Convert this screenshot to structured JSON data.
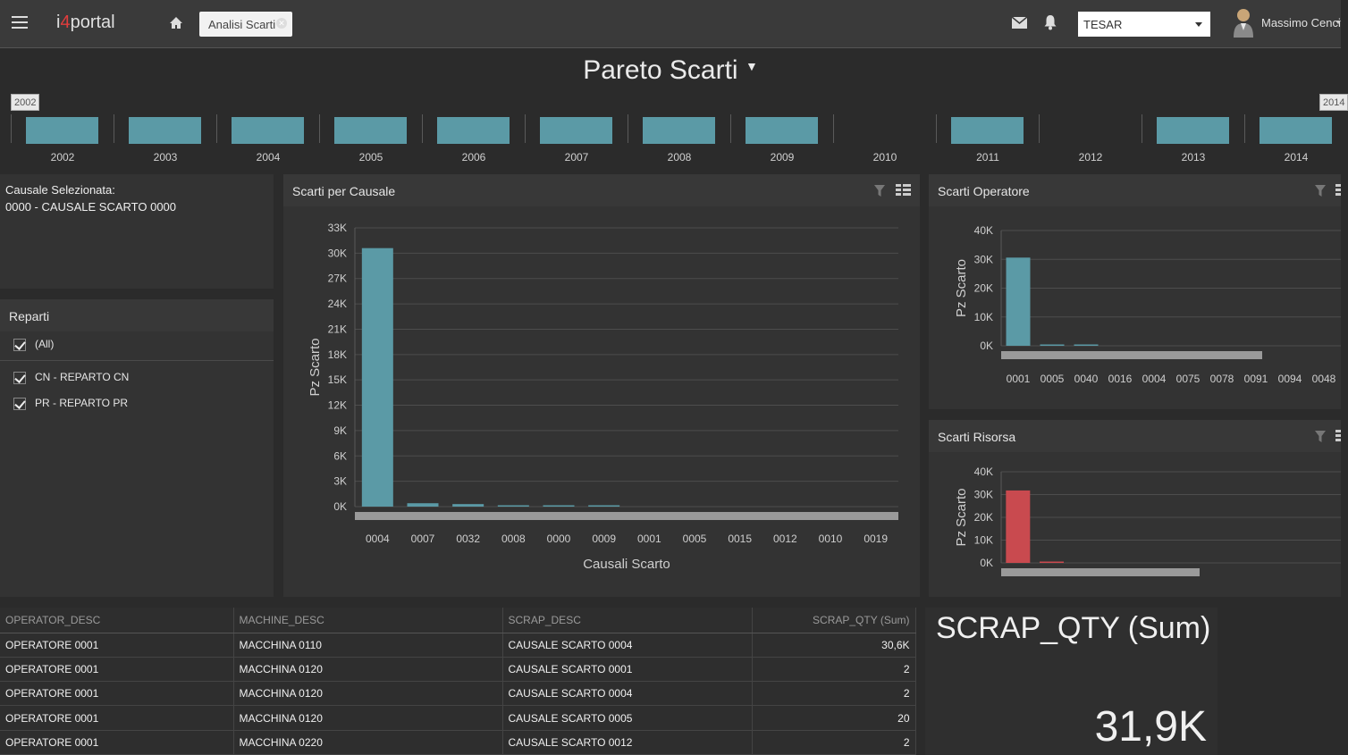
{
  "header": {
    "logo_prefix": "i",
    "logo_accent": "4",
    "logo_suffix": "portal",
    "tab_label": "Analisi Scarti",
    "company": "TESAR",
    "user_name": "Massimo Cenci"
  },
  "page_title": "Pareto Scarti",
  "timeline": {
    "years": [
      "2002",
      "2003",
      "2004",
      "2005",
      "2006",
      "2007",
      "2008",
      "2009",
      "2010",
      "2011",
      "2012",
      "2013",
      "2014"
    ],
    "has_data": [
      true,
      true,
      true,
      true,
      true,
      true,
      true,
      true,
      false,
      true,
      false,
      true,
      true
    ],
    "range_start": "2002",
    "range_end": "2014"
  },
  "selected_cause": {
    "label": "Causale Selezionata:",
    "value": "0000 - CAUSALE SCARTO 0000"
  },
  "reparti": {
    "title": "Reparti",
    "items": [
      "(All)",
      "CN - REPARTO CN",
      "PR - REPARTO PR"
    ]
  },
  "panels": {
    "main_title": "Scarti per Causale",
    "operator_title": "Scarti Operatore",
    "resource_title": "Scarti Risorsa"
  },
  "chart_data": [
    {
      "type": "bar",
      "title": "Scarti per Causale",
      "xlabel": "Causali Scarto",
      "ylabel": "Pz Scarto",
      "categories": [
        "0004",
        "0007",
        "0032",
        "0008",
        "0000",
        "0009",
        "0001",
        "0005",
        "0015",
        "0012",
        "0010",
        "0019"
      ],
      "values": [
        30600,
        400,
        300,
        100,
        80,
        60,
        0,
        0,
        0,
        0,
        0,
        0
      ],
      "yticks": [
        "0K",
        "3K",
        "6K",
        "9K",
        "12K",
        "15K",
        "18K",
        "21K",
        "24K",
        "27K",
        "30K",
        "33K"
      ],
      "ylim": [
        0,
        33000
      ],
      "color": "#5b9aa6",
      "grid": true
    },
    {
      "type": "bar",
      "title": "Scarti Operatore",
      "ylabel": "Pz Scarto",
      "categories": [
        "0001",
        "0005",
        "0040",
        "0016",
        "0004",
        "0075",
        "0078",
        "0091",
        "0094",
        "0048"
      ],
      "values": [
        30600,
        200,
        150,
        0,
        0,
        0,
        0,
        0,
        0,
        0
      ],
      "yticks": [
        "0K",
        "10K",
        "20K",
        "30K",
        "40K"
      ],
      "ylim": [
        0,
        40000
      ],
      "color": "#5b9aa6",
      "grid": true
    },
    {
      "type": "bar",
      "title": "Scarti Risorsa",
      "ylabel": "Pz Scarto",
      "categories": [
        "",
        "",
        ""
      ],
      "values": [
        31800,
        400,
        0
      ],
      "yticks": [
        "0K",
        "10K",
        "20K",
        "30K",
        "40K"
      ],
      "ylim": [
        0,
        40000
      ],
      "color": "#c94a4f",
      "grid": true
    }
  ],
  "grid": {
    "columns": [
      "OPERATOR_DESC",
      "MACHINE_DESC",
      "SCRAP_DESC",
      "SCRAP_QTY (Sum)"
    ],
    "rows": [
      [
        "OPERATORE 0001",
        "MACCHINA 0110",
        "CAUSALE SCARTO 0004",
        "30,6K"
      ],
      [
        "OPERATORE 0001",
        "MACCHINA 0120",
        "CAUSALE SCARTO 0001",
        "2"
      ],
      [
        "OPERATORE 0001",
        "MACCHINA 0120",
        "CAUSALE SCARTO 0004",
        "2"
      ],
      [
        "OPERATORE 0001",
        "MACCHINA 0120",
        "CAUSALE SCARTO 0005",
        "20"
      ],
      [
        "OPERATORE 0001",
        "MACCHINA 0220",
        "CAUSALE SCARTO 0012",
        "2"
      ]
    ]
  },
  "kpi": {
    "title": "SCRAP_QTY (Sum)",
    "value": "31,9K"
  }
}
